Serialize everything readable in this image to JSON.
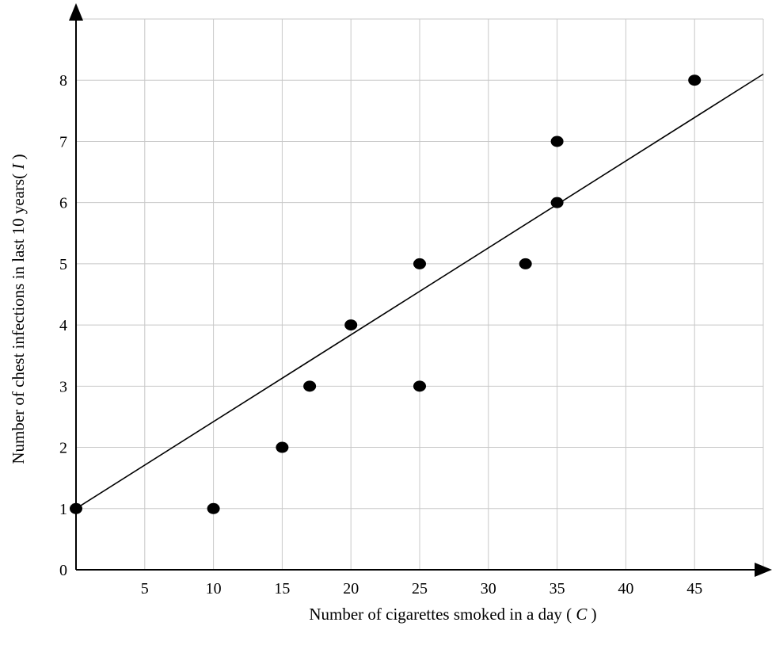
{
  "chart_data": {
    "type": "scatter",
    "xlabel": "Number of cigarettes smoked in a day (",
    "xlabel_var": "C",
    "xlabel_end": ")",
    "ylabel": "Number of chest infections in last 10 years(",
    "ylabel_var": "I",
    "ylabel_end": ")",
    "xlim": [
      0,
      50
    ],
    "ylim": [
      0,
      9
    ],
    "x_ticks": [
      5,
      10,
      15,
      20,
      25,
      30,
      35,
      40,
      45
    ],
    "y_ticks": [
      0,
      1,
      2,
      3,
      4,
      5,
      6,
      7,
      8
    ],
    "grid": true,
    "points": [
      {
        "x": 0,
        "y": 1
      },
      {
        "x": 10,
        "y": 1
      },
      {
        "x": 15,
        "y": 2
      },
      {
        "x": 17,
        "y": 3
      },
      {
        "x": 20,
        "y": 4
      },
      {
        "x": 25,
        "y": 5
      },
      {
        "x": 25,
        "y": 3
      },
      {
        "x": 32.7,
        "y": 5
      },
      {
        "x": 35,
        "y": 7
      },
      {
        "x": 35,
        "y": 6
      },
      {
        "x": 45,
        "y": 8
      }
    ],
    "trend_line": {
      "x1": 0,
      "y1": 1,
      "x2": 50,
      "y2": 8.1
    },
    "colors": {
      "axis": "#000000",
      "grid": "#c8c8c8",
      "points": "#000000",
      "line": "#000000"
    }
  }
}
